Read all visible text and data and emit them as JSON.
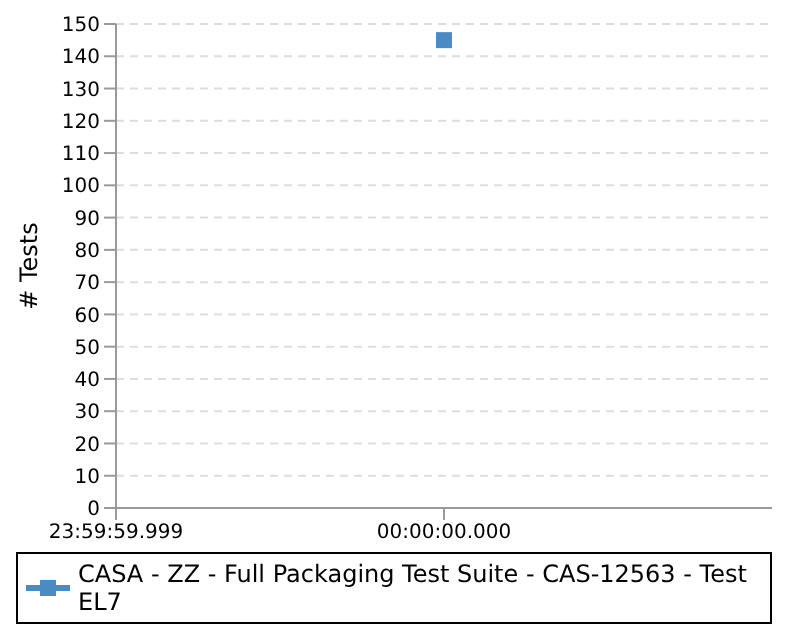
{
  "chart_data": {
    "type": "line",
    "ylabel": "# Tests",
    "categories": [
      "23:59:59.999",
      "00:00:00.000",
      null
    ],
    "series": [
      {
        "name": "CASA - ZZ - Full Packaging Test Suite - CAS-12563 - Test EL7",
        "color": "#4a8bc4",
        "values": [
          null,
          145,
          null
        ]
      }
    ],
    "ylim": [
      0,
      150
    ],
    "yticks": [
      0,
      10,
      20,
      30,
      40,
      50,
      60,
      70,
      80,
      90,
      100,
      110,
      120,
      130,
      140,
      150
    ],
    "grid": "y",
    "legend": "bottom",
    "marker": "square"
  }
}
